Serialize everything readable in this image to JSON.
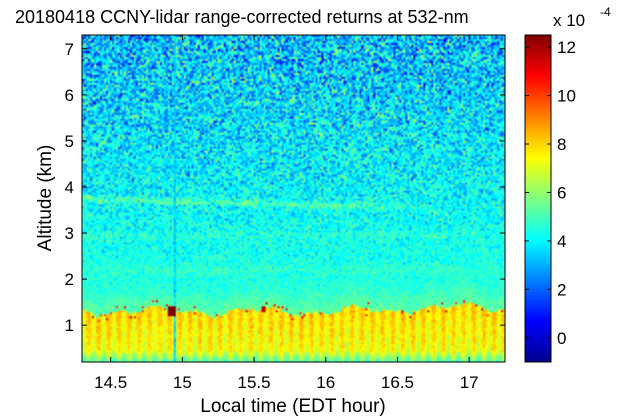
{
  "chart_data": {
    "type": "heatmap",
    "title": "20180418 CCNY-lidar range-corrected returns at 532-nm",
    "xlabel": "Local time (EDT hour)",
    "ylabel": "Altitude (km)",
    "xlim": [
      14.3,
      17.25
    ],
    "ylim": [
      0.2,
      7.3
    ],
    "x_ticks": [
      14.5,
      15,
      15.5,
      16,
      16.5,
      17
    ],
    "x_tick_labels": [
      "14.5",
      "15",
      "15.5",
      "16",
      "16.5",
      "17"
    ],
    "y_ticks": [
      1,
      2,
      3,
      4,
      5,
      6,
      7
    ],
    "y_tick_labels": [
      "1",
      "2",
      "3",
      "4",
      "5",
      "6",
      "7"
    ],
    "colormap": "jet",
    "colorbar": {
      "range": [
        -1,
        12.5
      ],
      "ticks": [
        0,
        2,
        4,
        6,
        8,
        10,
        12
      ],
      "tick_labels": [
        "0",
        "2",
        "4",
        "6",
        "8",
        "10",
        "12"
      ],
      "exponent_base": "x 10",
      "exponent_power": "-4"
    },
    "features": [
      {
        "type": "boundary-layer",
        "altitude_top_km": 1.3,
        "value_range": [
          6.5,
          8.5
        ]
      },
      {
        "type": "aerosol-layer",
        "altitude_km": 3.7,
        "value": 5.5
      },
      {
        "type": "high-return-spots",
        "altitude_km": 1.3,
        "value": 12
      }
    ],
    "gaps": [
      {
        "time": 14.95,
        "description": "vertical data gap"
      }
    ]
  }
}
